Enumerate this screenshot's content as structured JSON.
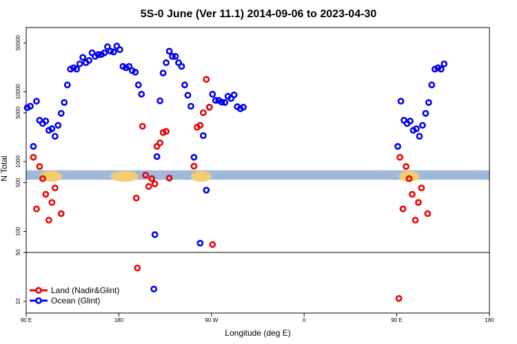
{
  "chart_data": {
    "type": "scatter",
    "title": "5S-0 June (Ver 11.1)   2014-09-06 to 2023-04-30",
    "xlabel": "Longitude (deg E)",
    "ylabel": "N Total",
    "x_scale": "longitude 90E to 180 wrapping",
    "y_scale": "log",
    "ylim": [
      7,
      75000
    ],
    "x_ticks": [
      {
        "lon": 90,
        "label": "90 E"
      },
      {
        "lon": 180,
        "label": "180"
      },
      {
        "lon": -90,
        "label": "90 W"
      },
      {
        "lon": 0,
        "label": "0"
      },
      {
        "lon": 90,
        "label": "90 E",
        "wrap": true
      },
      {
        "lon": 180,
        "label": "180",
        "wrap": true
      }
    ],
    "y_ticks": [
      {
        "v": 10,
        "label": "10"
      },
      {
        "v": 50,
        "label": "50"
      },
      {
        "v": 100,
        "label": "100"
      },
      {
        "v": 500,
        "label": "500"
      },
      {
        "v": 1000,
        "label": "1000"
      },
      {
        "v": 5000,
        "label": "5000"
      },
      {
        "v": 10000,
        "label": "10000"
      },
      {
        "v": 50000,
        "label": "50000"
      }
    ],
    "break_line_at": 50,
    "legend_position": "bottom-left",
    "land_band": {
      "from": 550,
      "to": 750
    },
    "series": [
      {
        "name": "Ocean (Glint)",
        "color": "#0000ee",
        "points": [
          [
            91,
            5900
          ],
          [
            94,
            6200
          ],
          [
            97,
            1650
          ],
          [
            100,
            7300
          ],
          [
            103,
            3900
          ],
          [
            106,
            3500
          ],
          [
            109,
            3800
          ],
          [
            112,
            2800
          ],
          [
            115,
            2950
          ],
          [
            118,
            2300
          ],
          [
            121,
            3300
          ],
          [
            124,
            4900
          ],
          [
            127,
            7000
          ],
          [
            130,
            12500
          ],
          [
            133,
            21000
          ],
          [
            136,
            22000
          ],
          [
            139,
            21000
          ],
          [
            142,
            25000
          ],
          [
            145,
            31000
          ],
          [
            148,
            26000
          ],
          [
            151,
            28000
          ],
          [
            154,
            36000
          ],
          [
            157,
            32000
          ],
          [
            160,
            34000
          ],
          [
            163,
            34000
          ],
          [
            166,
            36000
          ],
          [
            169,
            44000
          ],
          [
            172,
            38000
          ],
          [
            175,
            37000
          ],
          [
            178,
            45000
          ],
          [
            181,
            40000
          ],
          [
            184,
            23000
          ],
          [
            187,
            22000
          ],
          [
            190,
            23000
          ],
          [
            193,
            20000
          ],
          [
            196,
            19000
          ],
          [
            199,
            12500
          ],
          [
            202,
            9200
          ],
          [
            215,
            90
          ],
          [
            217,
            1180
          ],
          [
            220,
            7400
          ],
          [
            223,
            18500
          ],
          [
            226,
            26000
          ],
          [
            229,
            38000
          ],
          [
            232,
            32000
          ],
          [
            235,
            32000
          ],
          [
            238,
            26000
          ],
          [
            241,
            23000
          ],
          [
            244,
            12500
          ],
          [
            247,
            8900
          ],
          [
            250,
            6200
          ],
          [
            253,
            1150
          ],
          [
            259,
            68
          ],
          [
            262,
            2350
          ],
          [
            265,
            390
          ],
          [
            268,
            6000
          ],
          [
            271,
            9200
          ],
          [
            274,
            7500
          ],
          [
            277,
            7500
          ],
          [
            280,
            7100
          ],
          [
            283,
            7000
          ],
          [
            286,
            8600
          ],
          [
            289,
            8000
          ],
          [
            292,
            9000
          ],
          [
            295,
            6100
          ],
          [
            298,
            5700
          ],
          [
            301,
            6000
          ],
          [
            451,
            1650
          ],
          [
            454,
            7300
          ],
          [
            457,
            3900
          ],
          [
            460,
            3500
          ],
          [
            463,
            3800
          ],
          [
            466,
            2800
          ],
          [
            469,
            2950
          ],
          [
            472,
            2300
          ],
          [
            475,
            3300
          ],
          [
            478,
            4900
          ],
          [
            481,
            7000
          ],
          [
            484,
            12500
          ],
          [
            487,
            21000
          ],
          [
            490,
            22000
          ],
          [
            493,
            21000
          ],
          [
            496,
            25000
          ],
          [
            214,
            15
          ]
        ]
      },
      {
        "name": "Land (Nadir&Glint)",
        "color": "#ee0000",
        "points": [
          [
            97,
            1150
          ],
          [
            100,
            210
          ],
          [
            103,
            850
          ],
          [
            106,
            570
          ],
          [
            109,
            340
          ],
          [
            112,
            145
          ],
          [
            115,
            260
          ],
          [
            118,
            420
          ],
          [
            124,
            180
          ],
          [
            197,
            300
          ],
          [
            198,
            30
          ],
          [
            203,
            3200
          ],
          [
            206,
            640
          ],
          [
            209,
            440
          ],
          [
            212,
            570
          ],
          [
            215,
            480
          ],
          [
            217,
            1650
          ],
          [
            220,
            1850
          ],
          [
            223,
            2600
          ],
          [
            226,
            2700
          ],
          [
            229,
            580
          ],
          [
            253,
            860
          ],
          [
            256,
            3100
          ],
          [
            259,
            3300
          ],
          [
            262,
            5000
          ],
          [
            265,
            15000
          ],
          [
            268,
            6000
          ],
          [
            271,
            65
          ],
          [
            453,
            1150
          ],
          [
            456,
            210
          ],
          [
            459,
            850
          ],
          [
            462,
            570
          ],
          [
            465,
            340
          ],
          [
            468,
            145
          ],
          [
            471,
            260
          ],
          [
            474,
            420
          ],
          [
            480,
            180
          ],
          [
            452,
            11
          ]
        ]
      }
    ]
  }
}
